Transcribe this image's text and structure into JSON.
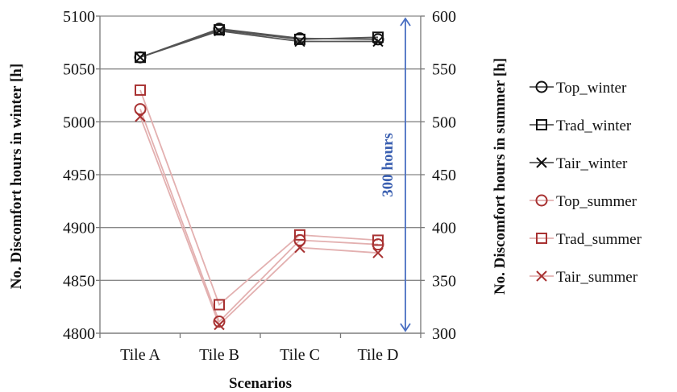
{
  "chart_data": {
    "type": "line",
    "xlabel": "Scenarios",
    "ylabel_left": "No. Discomfort hours in winter  [h]",
    "ylabel_right": "No. Discomfort hours in summer  [h]",
    "categories": [
      "Tile A",
      "Tile B",
      "Tile C",
      "Tile D"
    ],
    "ylim_left": [
      4800,
      5100
    ],
    "ylim_right": [
      300,
      600
    ],
    "yticks_left": [
      "4800",
      "4850",
      "4900",
      "4950",
      "5000",
      "5050",
      "5100"
    ],
    "yticks_right": [
      "300",
      "350",
      "400",
      "450",
      "500",
      "550",
      "600"
    ],
    "grid": "horizontal",
    "legend_position": "right",
    "series": [
      {
        "name": "Top_winter",
        "axis": "left",
        "marker": "circle",
        "color": "#111111",
        "values": [
          5061,
          5088,
          5079,
          5078
        ]
      },
      {
        "name": "Trad_winter",
        "axis": "left",
        "marker": "square",
        "color": "#111111",
        "values": [
          5061,
          5087,
          5078,
          5080
        ]
      },
      {
        "name": "Tair_winter",
        "axis": "left",
        "marker": "x",
        "color": "#111111",
        "values": [
          5061,
          5086,
          5076,
          5076
        ]
      },
      {
        "name": "Top_summer",
        "axis": "right",
        "marker": "circle",
        "color": "#a83232",
        "values": [
          512,
          311,
          388,
          384
        ]
      },
      {
        "name": "Trad_summer",
        "axis": "right",
        "marker": "square",
        "color": "#a83232",
        "values": [
          530,
          327,
          393,
          388
        ]
      },
      {
        "name": "Tair_summer",
        "axis": "right",
        "marker": "x",
        "color": "#a83232",
        "values": [
          505,
          308,
          381,
          376
        ]
      }
    ],
    "annotation": {
      "text": "300 hours",
      "color": "#3a5fb0"
    },
    "colors": {
      "summer_line": "#e3b0b0",
      "winter_line": "#555555",
      "grid": "#888888",
      "arrow": "#4a6fc2"
    }
  }
}
